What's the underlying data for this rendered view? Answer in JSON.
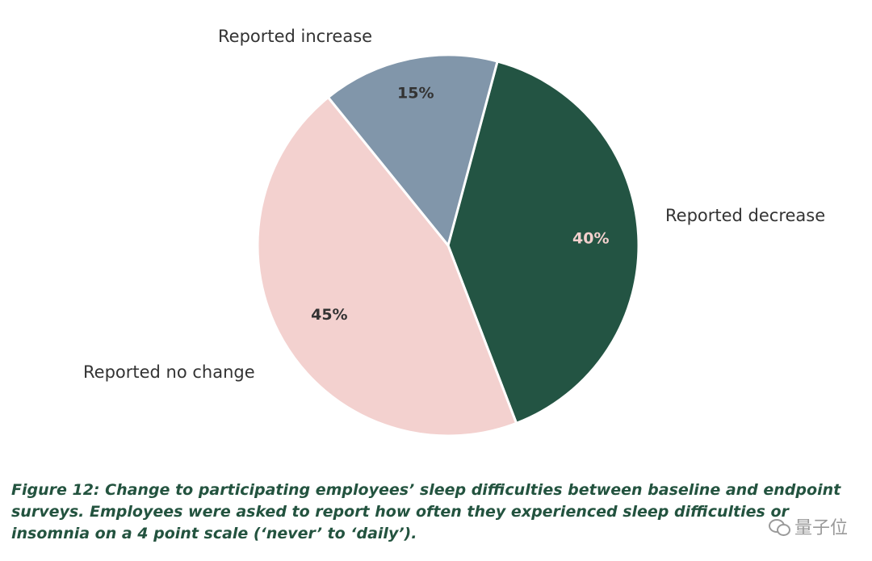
{
  "chart_data": {
    "type": "pie",
    "title": "",
    "slices": [
      {
        "label": "Reported decrease",
        "value": 40,
        "value_label": "40%",
        "color": "#235443",
        "text_color": "#f2d0cd"
      },
      {
        "label": "Reported no change",
        "value": 45,
        "value_label": "45%",
        "color": "#f3d1cf",
        "text_color": "#333333"
      },
      {
        "label": "Reported increase",
        "value": 15,
        "value_label": "15%",
        "color": "#8196aa",
        "text_color": "#333333"
      }
    ],
    "start_angle_deg": 15,
    "direction": "clockwise",
    "slice_border_color": "#ffffff",
    "legend": "none"
  },
  "caption": {
    "text": "Figure 12: Change to participating employees’ sleep difficulties between baseline and endpoint surveys. Employees were asked to report how often they experienced sleep difficulties or insomnia on a 4 point scale (‘never’ to ‘daily’)."
  },
  "watermark": {
    "text": "量子位",
    "icon": "wechat-icon"
  }
}
